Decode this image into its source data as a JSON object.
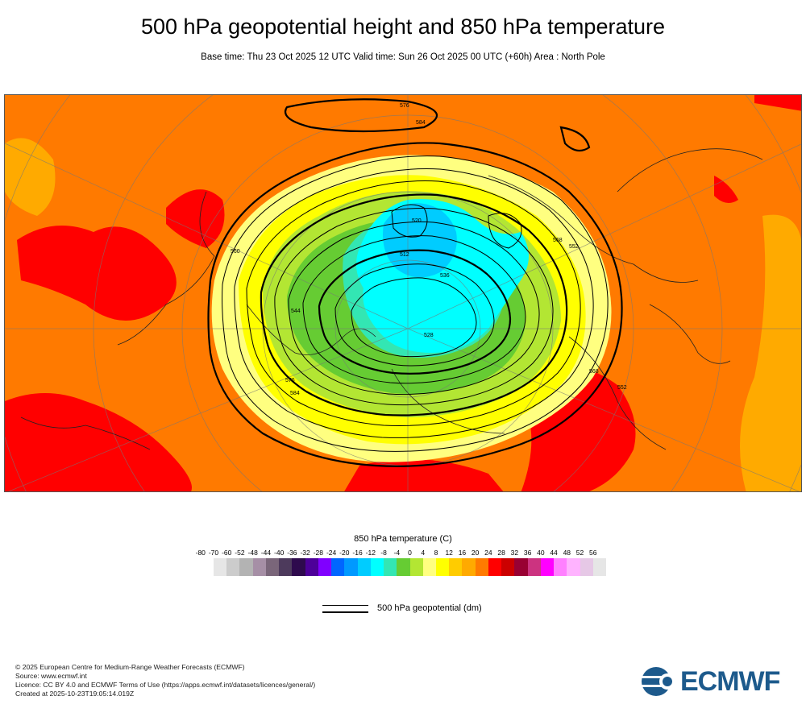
{
  "header": {
    "title": "500 hPa geopotential height and 850 hPa temperature",
    "subtitle": "Base time: Thu 23 Oct 2025 12 UTC Valid time: Sun 26 Oct 2025 00 UTC (+60h) Area : North Pole"
  },
  "map": {
    "area": "North Pole",
    "contour_labels": [
      "576",
      "584",
      "568",
      "552",
      "536",
      "520",
      "512",
      "528",
      "544",
      "560",
      "576",
      "584",
      "568",
      "552"
    ]
  },
  "legend": {
    "title": "850 hPa temperature (C)",
    "ticks": [
      "-80",
      "-70",
      "-60",
      "-52",
      "-48",
      "-44",
      "-40",
      "-36",
      "-32",
      "-28",
      "-24",
      "-20",
      "-16",
      "-12",
      "-8",
      "-4",
      "0",
      "4",
      "8",
      "12",
      "16",
      "20",
      "24",
      "28",
      "32",
      "36",
      "40",
      "44",
      "48",
      "52",
      "56"
    ],
    "colors": [
      "#e6e6e6",
      "#cccccc",
      "#b3b3b3",
      "#a68fa6",
      "#7a667a",
      "#4d3a5c",
      "#2e0a4d",
      "#4d0099",
      "#8000ff",
      "#0066ff",
      "#0099ff",
      "#00ccff",
      "#00ffff",
      "#33e6b3",
      "#66cc33",
      "#b3e633",
      "#ffff80",
      "#ffff00",
      "#ffcc00",
      "#ffaa00",
      "#ff7a00",
      "#ff0000",
      "#cc0000",
      "#990033",
      "#cc3380",
      "#ff00ff",
      "#ff80ff",
      "#ffb3ff",
      "#e6c8e6",
      "#e6e6e6"
    ],
    "geopotential_label": "500 hPa geopotential (dm)"
  },
  "footer": {
    "line1": "© 2025 European Centre for Medium-Range Weather Forecasts (ECMWF)",
    "line2": "Source: www.ecmwf.int",
    "line3": "Licence: CC BY 4.0 and ECMWF Terms of Use (https://apps.ecmwf.int/datasets/licences/general/)",
    "line4": "Created at 2025-10-23T19:05:14.019Z"
  },
  "logo": {
    "text": "ECMWF",
    "color": "#1d5a8c"
  }
}
